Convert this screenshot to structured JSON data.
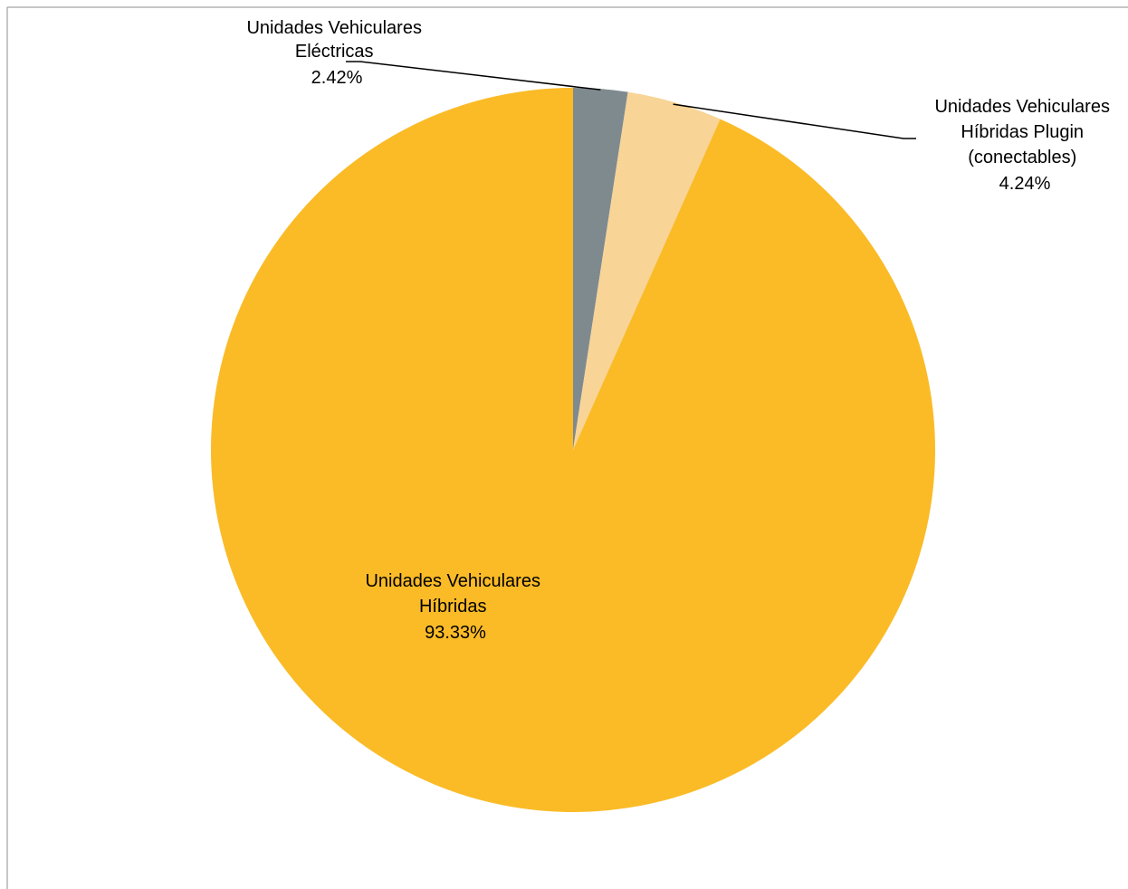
{
  "chart_data": {
    "type": "pie",
    "title": "",
    "start_angle_deg": 0,
    "direction": "clockwise",
    "slices": [
      {
        "category_lines": [
          "Unidades Vehiculares",
          "Eléctricas"
        ],
        "percent_label": "2.42%",
        "value": 2.42,
        "color": "#7F8A8F"
      },
      {
        "category_lines": [
          "Unidades Vehiculares",
          "Híbridas Plugin",
          "(conectables)"
        ],
        "percent_label": "4.24%",
        "value": 4.24,
        "color": "#F8D497"
      },
      {
        "category_lines": [
          "Unidades Vehiculares",
          "Híbridas"
        ],
        "percent_label": "93.33%",
        "value": 93.33,
        "color": "#FABB27"
      }
    ]
  }
}
